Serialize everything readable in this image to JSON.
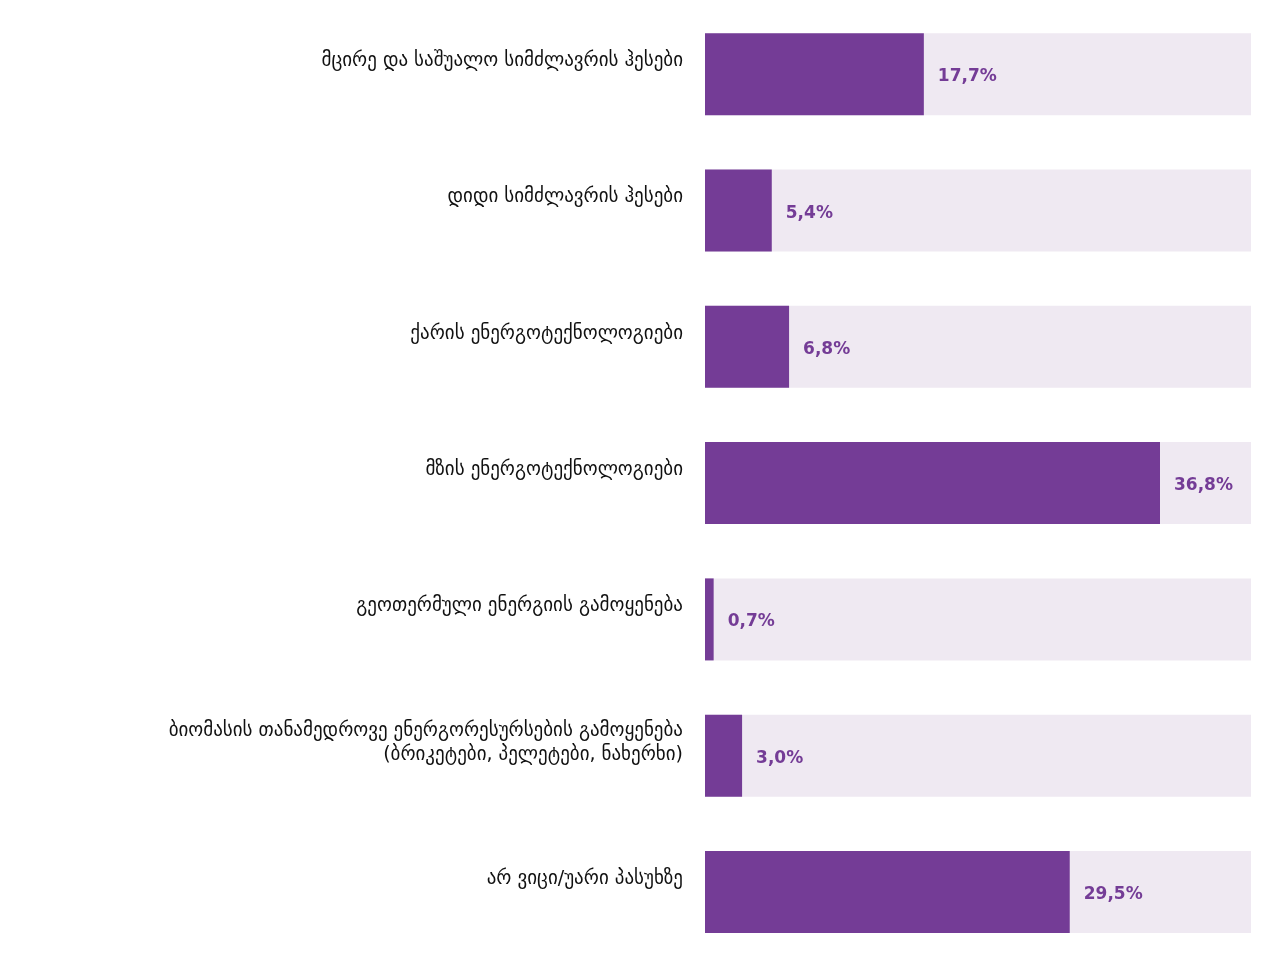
{
  "chart_data": {
    "type": "bar",
    "orientation": "horizontal",
    "categories": [
      "მცირე და საშუალო სიმძლავრის ჰესები",
      "დიდი სიმძლავრის ჰესები",
      "ქარის ენერგოტექნოლოგიები",
      "მზის ენერგოტექნოლოგიები",
      "გეოთერმული ენერგიის გამოყენება",
      "ბიომასის თანამედროვე ენერგორესურსების გამოყენება (ბრიკეტები, პელეტები, ნახერხი)",
      "არ ვიცი/უარი პასუხზე"
    ],
    "values": [
      17.7,
      5.4,
      6.8,
      36.8,
      0.7,
      3.0,
      29.5
    ],
    "value_labels": [
      "17,7%",
      "5,4%",
      "6,8%",
      "36,8%",
      "0,7%",
      "3,0%",
      "29,5%"
    ],
    "color": "#743c96",
    "grid": false,
    "legend": false
  }
}
